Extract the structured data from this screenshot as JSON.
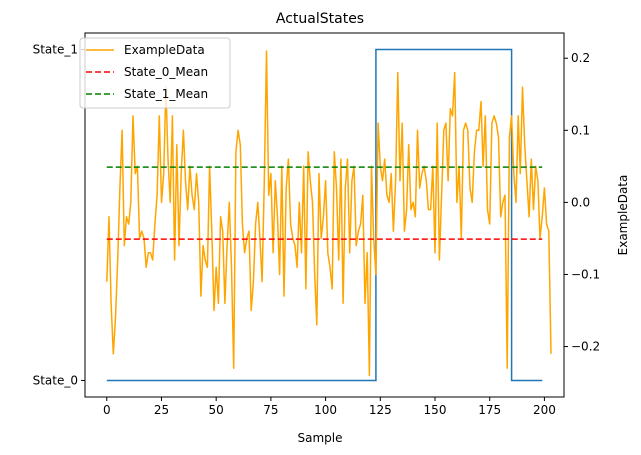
{
  "chart_data": {
    "type": "line",
    "title": "ActualStates",
    "xlabel": "Sample",
    "ylabel": "",
    "y2label": "ExampleData",
    "xlim": [
      -9.95,
      208.95
    ],
    "ylim_left": [
      -0.05,
      1.05
    ],
    "ylim_right": [
      -0.27,
      0.235
    ],
    "x_ticks": [
      0,
      25,
      50,
      75,
      100,
      125,
      150,
      175,
      200
    ],
    "y_left_ticks": [
      {
        "value": 0,
        "label": "State_0"
      },
      {
        "value": 1,
        "label": "State_1"
      }
    ],
    "y_right_ticks": [
      -0.2,
      -0.1,
      0.0,
      0.1,
      0.2
    ],
    "y_right_tick_labels": [
      "−0.2",
      "−0.1",
      "0.0",
      "0.1",
      "0.2"
    ],
    "legend_position": "top-left",
    "legend": [
      "ExampleData",
      "State_0_Mean",
      "State_1_Mean"
    ],
    "grid": false,
    "colors": {
      "example_data": "#ffa500",
      "actual_states": "#1f77b4",
      "state_0_mean": "#ff0000",
      "state_1_mean": "#008000"
    },
    "series": [
      {
        "name": "ActualStates",
        "axis": "left",
        "style": "step",
        "segments": [
          {
            "from": 0,
            "to": 123,
            "value": 0
          },
          {
            "from": 123,
            "to": 185,
            "value": 1
          },
          {
            "from": 185,
            "to": 199,
            "value": 0
          }
        ]
      },
      {
        "name": "ExampleData",
        "axis": "right",
        "style": "line",
        "x_start": 0,
        "values": [
          -0.11,
          -0.02,
          -0.14,
          -0.21,
          -0.16,
          -0.08,
          0.02,
          0.1,
          -0.06,
          -0.02,
          -0.03,
          0.0,
          0.12,
          0.04,
          0.05,
          -0.05,
          -0.04,
          -0.05,
          -0.09,
          -0.07,
          -0.07,
          -0.08,
          -0.03,
          0.01,
          0.12,
          0.0,
          0.04,
          0.16,
          0.06,
          0.0,
          0.12,
          -0.08,
          0.08,
          -0.06,
          0.04,
          0.1,
          0.03,
          -0.01,
          0.05,
          0.01,
          -0.01,
          0.04,
          0.0,
          -0.13,
          -0.06,
          -0.08,
          -0.09,
          0.05,
          -0.04,
          -0.15,
          -0.09,
          -0.14,
          -0.02,
          -0.04,
          -0.14,
          -0.06,
          0.0,
          -0.09,
          -0.23,
          0.07,
          0.1,
          0.08,
          -0.03,
          -0.07,
          -0.05,
          -0.04,
          -0.15,
          -0.11,
          -0.03,
          0.0,
          -0.05,
          -0.11,
          0.03,
          0.21,
          0.01,
          0.04,
          -0.07,
          0.03,
          -0.02,
          -0.1,
          0.05,
          -0.13,
          0.02,
          0.06,
          -0.03,
          -0.05,
          -0.06,
          -0.09,
          0.0,
          -0.07,
          0.05,
          -0.12,
          0.07,
          0.03,
          0.0,
          -0.1,
          -0.17,
          0.04,
          -0.05,
          -0.02,
          0.03,
          -0.07,
          -0.09,
          -0.12,
          0.07,
          0.02,
          -0.08,
          0.06,
          -0.14,
          0.02,
          0.06,
          -0.07,
          0.03,
          0.05,
          -0.06,
          -0.04,
          -0.03,
          0.01,
          -0.14,
          -0.07,
          -0.24,
          0.05,
          -0.05,
          -0.1,
          0.11,
          0.05,
          0.03,
          0.06,
          0.01,
          0.0,
          0.04,
          -0.04,
          0.03,
          0.18,
          0.03,
          0.11,
          -0.04,
          -0.01,
          0.08,
          -0.01,
          0.0,
          -0.02,
          0.1,
          0.02,
          0.04,
          0.05,
          0.03,
          -0.01,
          -0.01,
          0.05,
          -0.07,
          0.11,
          -0.08,
          0.01,
          0.1,
          0.11,
          0.03,
          0.13,
          0.12,
          0.18,
          0.0,
          0.05,
          -0.05,
          0.1,
          0.11,
          0.1,
          0.02,
          0.0,
          0.07,
          0.1,
          0.1,
          0.14,
          0.05,
          0.12,
          -0.01,
          -0.03,
          0.11,
          0.12,
          0.11,
          0.09,
          -0.02,
          0.0,
          0.01,
          -0.23,
          0.09,
          0.12,
          0.04,
          0.0,
          0.12,
          0.04,
          0.16,
          0.08,
          0.03,
          -0.02,
          0.06,
          -0.01,
          0.05,
          0.03,
          -0.05,
          -0.02,
          0.02,
          -0.03,
          -0.04,
          -0.21
        ]
      },
      {
        "name": "State_0_Mean",
        "axis": "right",
        "style": "dashed",
        "x_range": [
          0,
          199
        ],
        "value": -0.051
      },
      {
        "name": "State_1_Mean",
        "axis": "right",
        "style": "dashed",
        "x_range": [
          0,
          199
        ],
        "value": 0.049
      }
    ]
  }
}
